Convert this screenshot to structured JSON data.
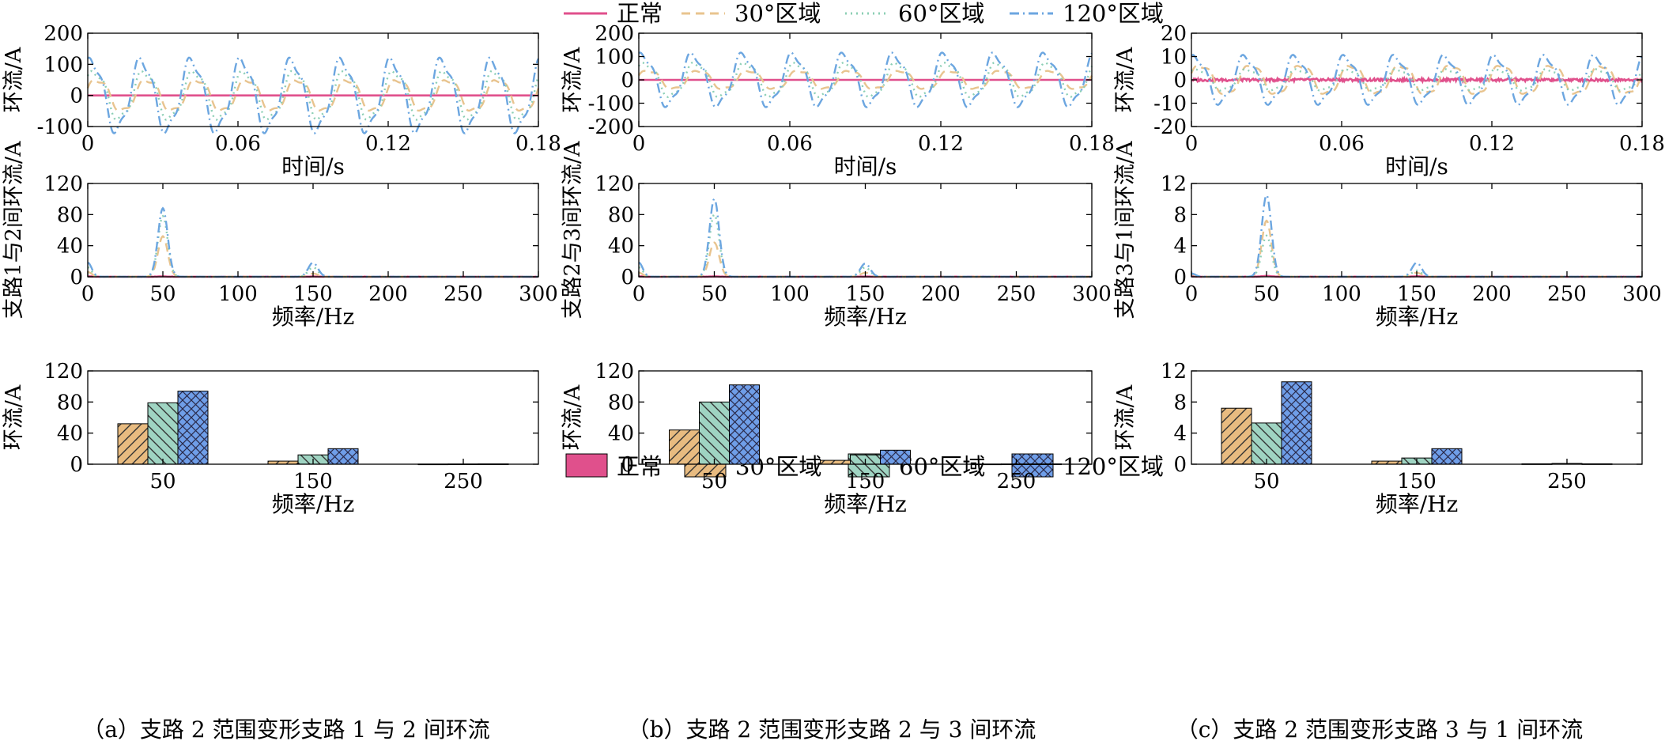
{
  "colors": {
    "normal": "#e0508c",
    "d30": "#e8c48f",
    "d60": "#8ccfb5",
    "d120": "#6ca6e0",
    "bar_normal": "#e0508c",
    "bar_d30": "#e8bb80",
    "bar_d60": "#9fd4c2",
    "bar_d120": "#6f9ee8"
  },
  "legend_top": [
    {
      "key": "normal",
      "label": "正常",
      "style": "solid"
    },
    {
      "key": "d30",
      "label": "30°区域",
      "style": "dashed"
    },
    {
      "key": "d60",
      "label": "60°区域",
      "style": "dotted"
    },
    {
      "key": "d120",
      "label": "120°区域",
      "style": "dashdot"
    }
  ],
  "legend_bottom": [
    {
      "key": "bar_normal",
      "label": "正常",
      "hatch": "none"
    },
    {
      "key": "bar_d30",
      "label": "30°区域",
      "hatch": "slash"
    },
    {
      "key": "bar_d60",
      "label": "60°区域",
      "hatch": "backslash"
    },
    {
      "key": "bar_d120",
      "label": "120°区域",
      "hatch": "cross"
    }
  ],
  "captions": [
    "（a）支路 2 范围变形支路 1 与 2 间环流",
    "（b）支路 2 范围变形支路 2 与 3 间环流",
    "（c）支路 2 范围变形支路 3 与 1 间环流"
  ],
  "chart_data": [
    {
      "id": "a-time",
      "type": "line",
      "xlabel": "时间/s",
      "ylabel": "环流/A",
      "xlim": [
        0,
        0.18
      ],
      "ylim": [
        -100,
        200
      ],
      "xticks": [
        "0",
        "0.06",
        "0.12",
        "0.18"
      ],
      "yticks": [
        "-100",
        "0",
        "100",
        "200"
      ],
      "frequency_hz": 50,
      "series": [
        {
          "name": "正常",
          "amplitude": 0
        },
        {
          "name": "30°区域",
          "amplitude": 57
        },
        {
          "name": "60°区域",
          "amplitude": 85
        },
        {
          "name": "120°区域",
          "amplitude": 125
        }
      ]
    },
    {
      "id": "b-time",
      "type": "line",
      "xlabel": "时间/s",
      "ylabel": "环流/A",
      "xlim": [
        0,
        0.18
      ],
      "ylim": [
        -200,
        200
      ],
      "xticks": [
        "0",
        "0.06",
        "0.12",
        "0.18"
      ],
      "yticks": [
        "-200",
        "-100",
        "0",
        "100",
        "200"
      ],
      "frequency_hz": 50,
      "series": [
        {
          "name": "正常",
          "amplitude": 0
        },
        {
          "name": "30°区域",
          "amplitude": 45
        },
        {
          "name": "60°区域",
          "amplitude": 80
        },
        {
          "name": "120°区域",
          "amplitude": 120
        }
      ]
    },
    {
      "id": "c-time",
      "type": "line",
      "xlabel": "时间/s",
      "ylabel": "环流/A",
      "xlim": [
        0,
        0.18
      ],
      "ylim": [
        -20,
        20
      ],
      "xticks": [
        "0",
        "0.06",
        "0.12",
        "0.18"
      ],
      "yticks": [
        "-20",
        "-10",
        "0",
        "10",
        "20"
      ],
      "frequency_hz": 50,
      "series": [
        {
          "name": "正常",
          "amplitude": 0.6
        },
        {
          "name": "30°区域",
          "amplitude": 7
        },
        {
          "name": "60°区域",
          "amplitude": 5
        },
        {
          "name": "120°区域",
          "amplitude": 11
        }
      ]
    },
    {
      "id": "a-fft",
      "type": "line",
      "xlabel": "频率/Hz",
      "ylabel": "支路1与2间环流/A",
      "xlim": [
        0,
        300
      ],
      "ylim": [
        0,
        120
      ],
      "xticks": [
        "0",
        "50",
        "100",
        "150",
        "200",
        "250",
        "300"
      ],
      "yticks": [
        "0",
        "40",
        "80",
        "120"
      ],
      "series": [
        {
          "name": "正常",
          "peaks": [
            [
              0,
              0.5
            ],
            [
              50,
              0.3
            ],
            [
              150,
              0.2
            ]
          ]
        },
        {
          "name": "30°区域",
          "peaks": [
            [
              0,
              6
            ],
            [
              50,
              52
            ],
            [
              150,
              4
            ]
          ]
        },
        {
          "name": "60°区域",
          "peaks": [
            [
              0,
              12
            ],
            [
              50,
              78
            ],
            [
              150,
              12
            ]
          ]
        },
        {
          "name": "120°区域",
          "peaks": [
            [
              0,
              18
            ],
            [
              50,
              88
            ],
            [
              150,
              18
            ]
          ]
        }
      ]
    },
    {
      "id": "b-fft",
      "type": "line",
      "xlabel": "频率/Hz",
      "ylabel": "支路2与3间环流/A",
      "xlim": [
        0,
        300
      ],
      "ylim": [
        0,
        120
      ],
      "xticks": [
        "0",
        "50",
        "100",
        "150",
        "200",
        "250",
        "300"
      ],
      "yticks": [
        "0",
        "40",
        "80",
        "120"
      ],
      "series": [
        {
          "name": "正常",
          "peaks": [
            [
              0,
              0.5
            ],
            [
              50,
              0.3
            ],
            [
              150,
              0.2
            ]
          ]
        },
        {
          "name": "30°区域",
          "peaks": [
            [
              0,
              5
            ],
            [
              50,
              44
            ],
            [
              150,
              5
            ]
          ]
        },
        {
          "name": "60°区域",
          "peaks": [
            [
              0,
              12
            ],
            [
              50,
              80
            ],
            [
              150,
              12
            ]
          ]
        },
        {
          "name": "120°区域",
          "peaks": [
            [
              0,
              18
            ],
            [
              50,
              100
            ],
            [
              150,
              17
            ]
          ]
        }
      ]
    },
    {
      "id": "c-fft",
      "type": "line",
      "xlabel": "频率/Hz",
      "ylabel": "支路3与1间环流/A",
      "xlim": [
        0,
        300
      ],
      "ylim": [
        0,
        12
      ],
      "xticks": [
        "0",
        "50",
        "100",
        "150",
        "200",
        "250",
        "300"
      ],
      "yticks": [
        "0",
        "4",
        "8",
        "12"
      ],
      "series": [
        {
          "name": "正常",
          "peaks": [
            [
              0,
              0.05
            ],
            [
              50,
              0.1
            ],
            [
              150,
              0.05
            ]
          ]
        },
        {
          "name": "30°区域",
          "peaks": [
            [
              0,
              0.3
            ],
            [
              50,
              7.2
            ],
            [
              150,
              0.5
            ]
          ]
        },
        {
          "name": "60°区域",
          "peaks": [
            [
              0,
              0.3
            ],
            [
              50,
              5.3
            ],
            [
              150,
              0.8
            ]
          ]
        },
        {
          "name": "120°区域",
          "peaks": [
            [
              0,
              0.4
            ],
            [
              50,
              10.5
            ],
            [
              150,
              1.8
            ]
          ]
        }
      ]
    },
    {
      "id": "a-bar",
      "type": "bar",
      "xlabel": "频率/Hz",
      "ylabel": "环流/A",
      "ylim": [
        0,
        120
      ],
      "yticks": [
        "0",
        "40",
        "80",
        "120"
      ],
      "categories": [
        "50",
        "150",
        "250"
      ],
      "series": [
        {
          "name": "正常",
          "values": [
            0,
            0,
            0
          ]
        },
        {
          "name": "30°区域",
          "values": [
            52,
            4,
            0.2
          ]
        },
        {
          "name": "60°区域",
          "values": [
            79,
            12,
            0.3
          ]
        },
        {
          "name": "120°区域",
          "values": [
            94,
            20,
            0.4
          ]
        }
      ]
    },
    {
      "id": "b-bar",
      "type": "bar",
      "xlabel": "频率/Hz",
      "ylabel": "环流/A",
      "ylim": [
        0,
        120
      ],
      "yticks": [
        "0",
        "40",
        "80",
        "120"
      ],
      "categories": [
        "50",
        "150",
        "250"
      ],
      "series": [
        {
          "name": "正常",
          "values": [
            0,
            0,
            0
          ]
        },
        {
          "name": "30°区域",
          "values": [
            44,
            5,
            0.2
          ]
        },
        {
          "name": "60°区域",
          "values": [
            80,
            12,
            0.3
          ]
        },
        {
          "name": "120°区域",
          "values": [
            102,
            18,
            0.4
          ]
        }
      ]
    },
    {
      "id": "c-bar",
      "type": "bar",
      "xlabel": "频率/Hz",
      "ylabel": "环流/A",
      "ylim": [
        0,
        12
      ],
      "yticks": [
        "0",
        "4",
        "8",
        "12"
      ],
      "categories": [
        "50",
        "150",
        "250"
      ],
      "series": [
        {
          "name": "正常",
          "values": [
            0,
            0,
            0
          ]
        },
        {
          "name": "30°区域",
          "values": [
            7.2,
            0.4,
            0.05
          ]
        },
        {
          "name": "60°区域",
          "values": [
            5.3,
            0.8,
            0.1
          ]
        },
        {
          "name": "120°区域",
          "values": [
            10.6,
            2.0,
            0.05
          ]
        }
      ]
    }
  ]
}
